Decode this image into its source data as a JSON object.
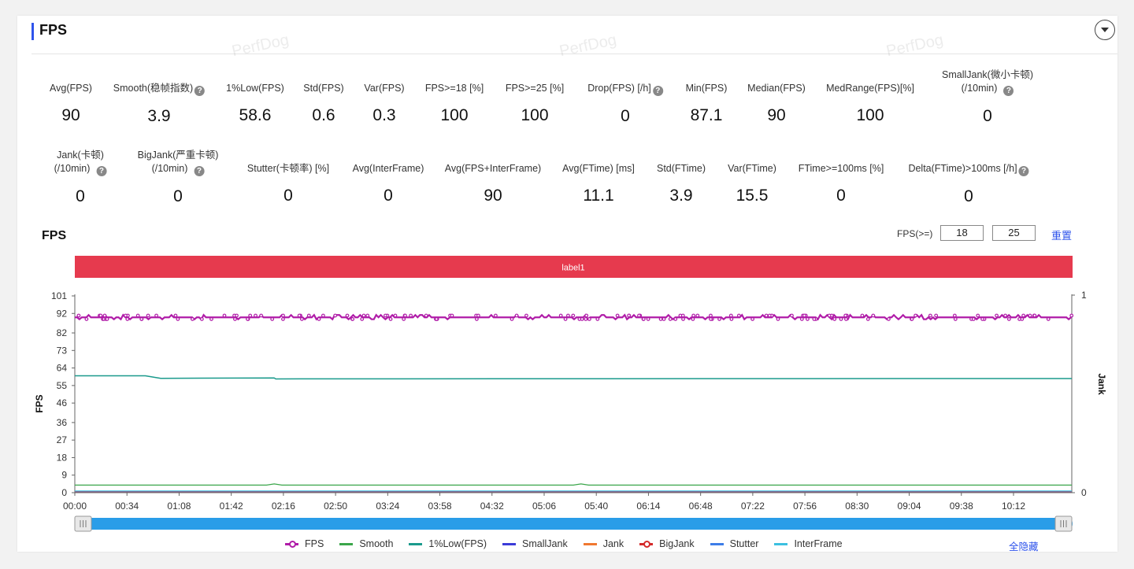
{
  "header": {
    "title": "FPS"
  },
  "watermark": "PerfDog",
  "metrics_row1": [
    {
      "label": "Avg(FPS)",
      "value": "90",
      "help": false
    },
    {
      "label": "Smooth(稳帧指数)",
      "value": "3.9",
      "help": true
    },
    {
      "label": "1%Low(FPS)",
      "value": "58.6",
      "help": false
    },
    {
      "label": "Std(FPS)",
      "value": "0.6",
      "help": false
    },
    {
      "label": "Var(FPS)",
      "value": "0.3",
      "help": false
    },
    {
      "label": "FPS>=18 [%]",
      "value": "100",
      "help": false
    },
    {
      "label": "FPS>=25 [%]",
      "value": "100",
      "help": false
    },
    {
      "label": "Drop(FPS) [/h]",
      "value": "0",
      "help": true
    },
    {
      "label": "Min(FPS)",
      "value": "87.1",
      "help": false
    },
    {
      "label": "Median(FPS)",
      "value": "90",
      "help": false
    },
    {
      "label": "MedRange(FPS)[%]",
      "value": "100",
      "help": false
    },
    {
      "label": "SmallJank(微小卡顿)",
      "label2": "(/10min)",
      "value": "0",
      "help": true
    }
  ],
  "metrics_row2": [
    {
      "label": "Jank(卡顿)",
      "label2": "(/10min)",
      "value": "0",
      "help": true
    },
    {
      "label": "BigJank(严重卡顿)",
      "label2": "(/10min)",
      "value": "0",
      "help": true
    },
    {
      "label": "Stutter(卡顿率) [%]",
      "value": "0",
      "help": false
    },
    {
      "label": "Avg(InterFrame)",
      "value": "0",
      "help": false
    },
    {
      "label": "Avg(FPS+InterFrame)",
      "value": "90",
      "help": false
    },
    {
      "label": "Avg(FTime) [ms]",
      "value": "11.1",
      "help": false
    },
    {
      "label": "Std(FTime)",
      "value": "3.9",
      "help": false
    },
    {
      "label": "Var(FTime)",
      "value": "15.5",
      "help": false
    },
    {
      "label": "FTime>=100ms [%]",
      "value": "0",
      "help": false
    },
    {
      "label": "Delta(FTime)>100ms [/h]",
      "value": "0",
      "help": true
    }
  ],
  "chart_header": {
    "title": "FPS",
    "threshold_label": "FPS(>=)",
    "threshold_1": "18",
    "threshold_2": "25",
    "reset_label": "重置"
  },
  "chart_data": {
    "type": "line",
    "band_label": "label1",
    "ylabel": "FPS",
    "y2label": "Jank",
    "y_ticks": [
      0,
      9,
      18,
      27,
      36,
      46,
      55,
      64,
      73,
      82,
      92,
      101
    ],
    "ylim": [
      0,
      101
    ],
    "y2_ticks": [
      0,
      1
    ],
    "x_ticks": [
      "00:00",
      "00:34",
      "01:08",
      "01:42",
      "02:16",
      "02:50",
      "03:24",
      "03:58",
      "04:32",
      "05:06",
      "05:40",
      "06:14",
      "06:48",
      "07:22",
      "07:56",
      "08:30",
      "09:04",
      "09:38",
      "10:12"
    ],
    "duration_seconds": 650,
    "series": [
      {
        "name": "FPS",
        "color": "#b01ca8",
        "approx_value": 90
      },
      {
        "name": "Smooth",
        "color": "#3aa64a",
        "approx_value": 3.9
      },
      {
        "name": "1%Low(FPS)",
        "color": "#1a9a8c",
        "values": [
          {
            "t": 0,
            "v": 60
          },
          {
            "t": 46,
            "v": 60
          },
          {
            "t": 56,
            "v": 58.7
          },
          {
            "t": 130,
            "v": 58.9
          },
          {
            "t": 131,
            "v": 58.4
          },
          {
            "t": 650,
            "v": 58.6
          }
        ]
      },
      {
        "name": "SmallJank",
        "color": "#3b3bd8",
        "approx_value": 0
      },
      {
        "name": "Jank",
        "color": "#f07830",
        "approx_value": 0
      },
      {
        "name": "BigJank",
        "color": "#d42a2a",
        "approx_value": 0
      },
      {
        "name": "Stutter",
        "color": "#3d7de8",
        "approx_value": 0
      },
      {
        "name": "InterFrame",
        "color": "#3cc0e0",
        "approx_value": 0
      }
    ]
  },
  "legend_hide_all": "全隐藏",
  "colors": {
    "accent": "#2f54eb",
    "band": "#e63a4e",
    "slider": "#2a9de8"
  }
}
